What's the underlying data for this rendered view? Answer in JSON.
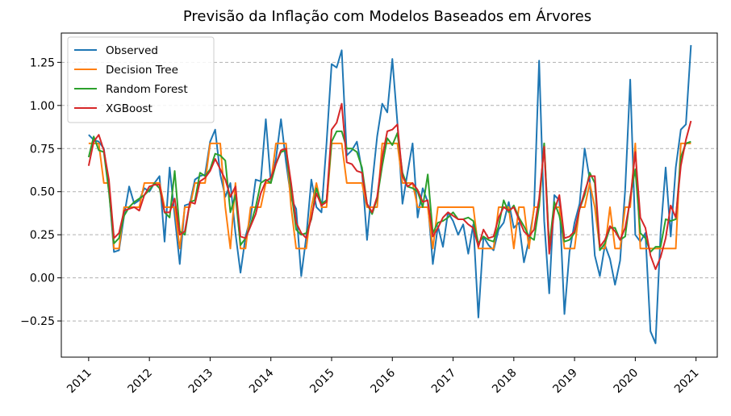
{
  "chart_data": {
    "type": "line",
    "title": "Previsão da Inflação com Modelos Baseados em Árvores",
    "xlabel": "",
    "ylabel": "",
    "x_ticks": [
      "2011",
      "2012",
      "2013",
      "2014",
      "2015",
      "2016",
      "2017",
      "2018",
      "2019",
      "2020",
      "2021"
    ],
    "y_ticks": [
      "−0.25",
      "0.00",
      "0.25",
      "0.50",
      "0.75",
      "1.00",
      "1.25"
    ],
    "xlim": [
      2010.55,
      2021.35
    ],
    "ylim": [
      -0.46,
      1.42
    ],
    "grid": "horizontal dashed",
    "legend_position": "top-left",
    "series": [
      {
        "name": "Observed",
        "color": "#1f77b4",
        "values": [
          0.83,
          0.8,
          0.79,
          0.75,
          0.52,
          0.15,
          0.16,
          0.36,
          0.53,
          0.43,
          0.45,
          0.52,
          0.5,
          0.55,
          0.59,
          0.21,
          0.64,
          0.36,
          0.08,
          0.42,
          0.43,
          0.57,
          0.59,
          0.6,
          0.79,
          0.86,
          0.6,
          0.47,
          0.55,
          0.26,
          0.03,
          0.24,
          0.35,
          0.57,
          0.56,
          0.92,
          0.55,
          0.69,
          0.92,
          0.67,
          0.46,
          0.4,
          0.01,
          0.24,
          0.57,
          0.41,
          0.38,
          0.78,
          1.24,
          1.22,
          1.32,
          0.71,
          0.74,
          0.79,
          0.62,
          0.22,
          0.54,
          0.82,
          1.01,
          0.96,
          1.27,
          0.9,
          0.43,
          0.61,
          0.78,
          0.35,
          0.52,
          0.44,
          0.08,
          0.3,
          0.18,
          0.38,
          0.33,
          0.25,
          0.31,
          0.14,
          0.31,
          -0.23,
          0.24,
          0.19,
          0.16,
          0.28,
          0.32,
          0.44,
          0.29,
          0.32,
          0.09,
          0.22,
          0.4,
          1.26,
          0.33,
          -0.09,
          0.48,
          0.45,
          -0.21,
          0.15,
          0.32,
          0.43,
          0.75,
          0.57,
          0.13,
          0.01,
          0.19,
          0.11,
          -0.04,
          0.1,
          0.51,
          1.15,
          0.25,
          0.21,
          0.26,
          -0.31,
          -0.38,
          0.26,
          0.64,
          0.24,
          0.64,
          0.86,
          0.89,
          1.35
        ]
      },
      {
        "name": "Decision Tree",
        "color": "#ff7f0e",
        "values": [
          0.78,
          0.78,
          0.78,
          0.55,
          0.55,
          0.17,
          0.17,
          0.41,
          0.41,
          0.41,
          0.41,
          0.55,
          0.55,
          0.55,
          0.55,
          0.41,
          0.41,
          0.41,
          0.17,
          0.41,
          0.41,
          0.55,
          0.55,
          0.55,
          0.78,
          0.78,
          0.78,
          0.41,
          0.17,
          0.55,
          0.17,
          0.17,
          0.41,
          0.41,
          0.41,
          0.55,
          0.55,
          0.78,
          0.78,
          0.78,
          0.41,
          0.17,
          0.17,
          0.17,
          0.41,
          0.55,
          0.41,
          0.41,
          0.78,
          0.78,
          0.78,
          0.55,
          0.55,
          0.55,
          0.55,
          0.41,
          0.41,
          0.41,
          0.78,
          0.78,
          0.78,
          0.78,
          0.55,
          0.55,
          0.55,
          0.41,
          0.41,
          0.41,
          0.17,
          0.41,
          0.41,
          0.41,
          0.41,
          0.41,
          0.41,
          0.41,
          0.41,
          0.17,
          0.17,
          0.17,
          0.17,
          0.41,
          0.41,
          0.41,
          0.17,
          0.41,
          0.41,
          0.17,
          0.41,
          0.41,
          0.78,
          0.17,
          0.41,
          0.41,
          0.17,
          0.17,
          0.17,
          0.41,
          0.41,
          0.55,
          0.41,
          0.17,
          0.17,
          0.41,
          0.17,
          0.17,
          0.41,
          0.41,
          0.78,
          0.17,
          0.17,
          0.17,
          0.17,
          0.17,
          0.17,
          0.17,
          0.17,
          0.78,
          0.78,
          0.78
        ]
      },
      {
        "name": "Random Forest",
        "color": "#2ca02c",
        "values": [
          0.7,
          0.82,
          0.74,
          0.73,
          0.5,
          0.2,
          0.23,
          0.36,
          0.41,
          0.44,
          0.46,
          0.48,
          0.51,
          0.55,
          0.52,
          0.38,
          0.35,
          0.62,
          0.27,
          0.25,
          0.44,
          0.45,
          0.61,
          0.59,
          0.63,
          0.72,
          0.71,
          0.68,
          0.38,
          0.48,
          0.19,
          0.23,
          0.31,
          0.41,
          0.55,
          0.57,
          0.55,
          0.66,
          0.73,
          0.74,
          0.51,
          0.28,
          0.25,
          0.26,
          0.34,
          0.52,
          0.43,
          0.45,
          0.79,
          0.85,
          0.85,
          0.75,
          0.75,
          0.73,
          0.64,
          0.43,
          0.37,
          0.46,
          0.65,
          0.81,
          0.77,
          0.84,
          0.61,
          0.53,
          0.52,
          0.5,
          0.41,
          0.6,
          0.26,
          0.32,
          0.33,
          0.35,
          0.38,
          0.34,
          0.34,
          0.35,
          0.33,
          0.2,
          0.24,
          0.22,
          0.21,
          0.3,
          0.45,
          0.38,
          0.42,
          0.35,
          0.3,
          0.24,
          0.22,
          0.42,
          0.78,
          0.18,
          0.44,
          0.36,
          0.21,
          0.22,
          0.26,
          0.4,
          0.48,
          0.61,
          0.55,
          0.16,
          0.2,
          0.29,
          0.29,
          0.22,
          0.24,
          0.47,
          0.63,
          0.26,
          0.23,
          0.15,
          0.18,
          0.18,
          0.34,
          0.33,
          0.34,
          0.7,
          0.78,
          0.79
        ]
      },
      {
        "name": "XGBoost",
        "color": "#d62728",
        "values": [
          0.65,
          0.79,
          0.83,
          0.74,
          0.57,
          0.23,
          0.26,
          0.39,
          0.4,
          0.41,
          0.39,
          0.48,
          0.53,
          0.54,
          0.54,
          0.38,
          0.38,
          0.46,
          0.25,
          0.27,
          0.44,
          0.43,
          0.56,
          0.58,
          0.62,
          0.69,
          0.63,
          0.57,
          0.47,
          0.53,
          0.24,
          0.23,
          0.3,
          0.37,
          0.49,
          0.56,
          0.58,
          0.66,
          0.74,
          0.75,
          0.55,
          0.32,
          0.26,
          0.23,
          0.35,
          0.49,
          0.42,
          0.44,
          0.86,
          0.9,
          1.01,
          0.67,
          0.66,
          0.62,
          0.61,
          0.43,
          0.38,
          0.47,
          0.7,
          0.85,
          0.86,
          0.89,
          0.59,
          0.53,
          0.55,
          0.51,
          0.44,
          0.45,
          0.24,
          0.29,
          0.35,
          0.38,
          0.36,
          0.34,
          0.34,
          0.31,
          0.29,
          0.18,
          0.28,
          0.23,
          0.24,
          0.35,
          0.41,
          0.39,
          0.41,
          0.34,
          0.27,
          0.24,
          0.28,
          0.46,
          0.76,
          0.14,
          0.39,
          0.48,
          0.23,
          0.24,
          0.27,
          0.4,
          0.5,
          0.59,
          0.59,
          0.18,
          0.22,
          0.3,
          0.27,
          0.22,
          0.29,
          0.45,
          0.73,
          0.35,
          0.29,
          0.13,
          0.05,
          0.12,
          0.23,
          0.42,
          0.35,
          0.65,
          0.8,
          0.91
        ]
      }
    ]
  }
}
